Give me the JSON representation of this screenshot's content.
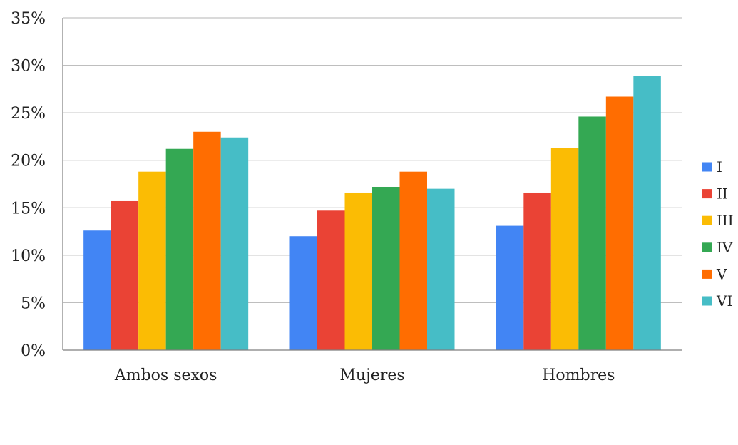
{
  "chart_data": {
    "type": "bar",
    "title": "",
    "xlabel": "",
    "ylabel": "",
    "categories": [
      "Ambos sexos",
      "Mujeres",
      "Hombres"
    ],
    "series": [
      {
        "name": "I",
        "color": "#4285f4",
        "values": [
          12.6,
          12.0,
          13.1
        ]
      },
      {
        "name": "II",
        "color": "#ea4335",
        "values": [
          15.7,
          14.7,
          16.6
        ]
      },
      {
        "name": "III",
        "color": "#fbbc04",
        "values": [
          18.8,
          16.6,
          21.3
        ]
      },
      {
        "name": "IV",
        "color": "#34a853",
        "values": [
          21.2,
          17.2,
          24.6
        ]
      },
      {
        "name": "V",
        "color": "#ff6d01",
        "values": [
          23.0,
          18.8,
          26.7
        ]
      },
      {
        "name": "VI",
        "color": "#46bdc6",
        "values": [
          22.4,
          17.0,
          28.9
        ]
      }
    ],
    "ylim": [
      0,
      35
    ],
    "yticks": [
      0,
      5,
      10,
      15,
      20,
      25,
      30,
      35
    ],
    "ytick_labels": [
      "0%",
      "5%",
      "10%",
      "15%",
      "20%",
      "25%",
      "30%",
      "35%"
    ],
    "grid": true,
    "legend_position": "right"
  }
}
